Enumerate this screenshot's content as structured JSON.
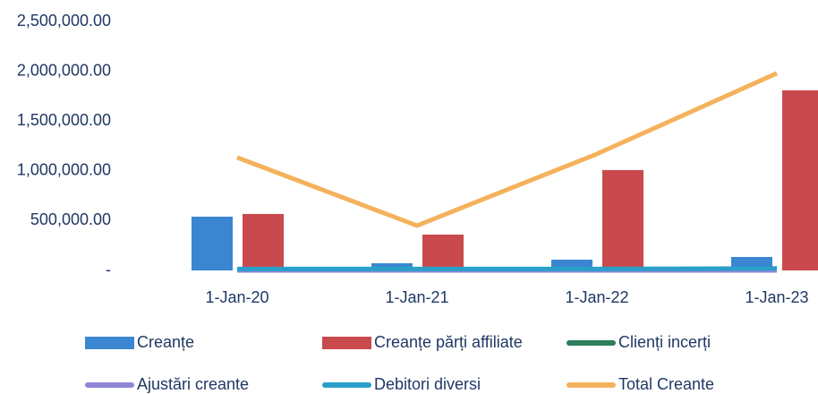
{
  "chart_data": {
    "type": "combo",
    "categories": [
      "1-Jan-20",
      "1-Jan-21",
      "1-Jan-22",
      "1-Jan-23"
    ],
    "series": [
      {
        "name": "Creanțe",
        "type": "bar",
        "color": "#3a86d0",
        "values": [
          540000,
          72000,
          108000,
          135000
        ]
      },
      {
        "name": "Creanțe părți affiliate",
        "type": "bar",
        "color": "#c94a4d",
        "values": [
          567000,
          360000,
          1008000,
          1809000
        ]
      },
      {
        "name": "Clienți incerți",
        "type": "line",
        "color": "#2e7d5b",
        "values": [
          0,
          0,
          0,
          0
        ]
      },
      {
        "name": "Ajustări creante",
        "type": "line",
        "color": "#8f86d8",
        "values": [
          0,
          0,
          0,
          0
        ]
      },
      {
        "name": "Debitori diversi",
        "type": "line",
        "color": "#2a9fc9",
        "values": [
          15000,
          15000,
          15000,
          20000
        ]
      },
      {
        "name": "Total Creante",
        "type": "line",
        "color": "#f5b25c",
        "values": [
          1134000,
          450000,
          1170000,
          1980000
        ]
      }
    ],
    "ylim": [
      0,
      2500000
    ],
    "yticks": [
      {
        "value": 0,
        "label": "-"
      },
      {
        "value": 500000,
        "label": "500,000.00"
      },
      {
        "value": 1000000,
        "label": "1,000,000.00"
      },
      {
        "value": 1500000,
        "label": "1,500,000.00"
      },
      {
        "value": 2000000,
        "label": "2,000,000.00"
      },
      {
        "value": 2500000,
        "label": "2,500,000.00"
      }
    ],
    "legend": "bottom"
  }
}
